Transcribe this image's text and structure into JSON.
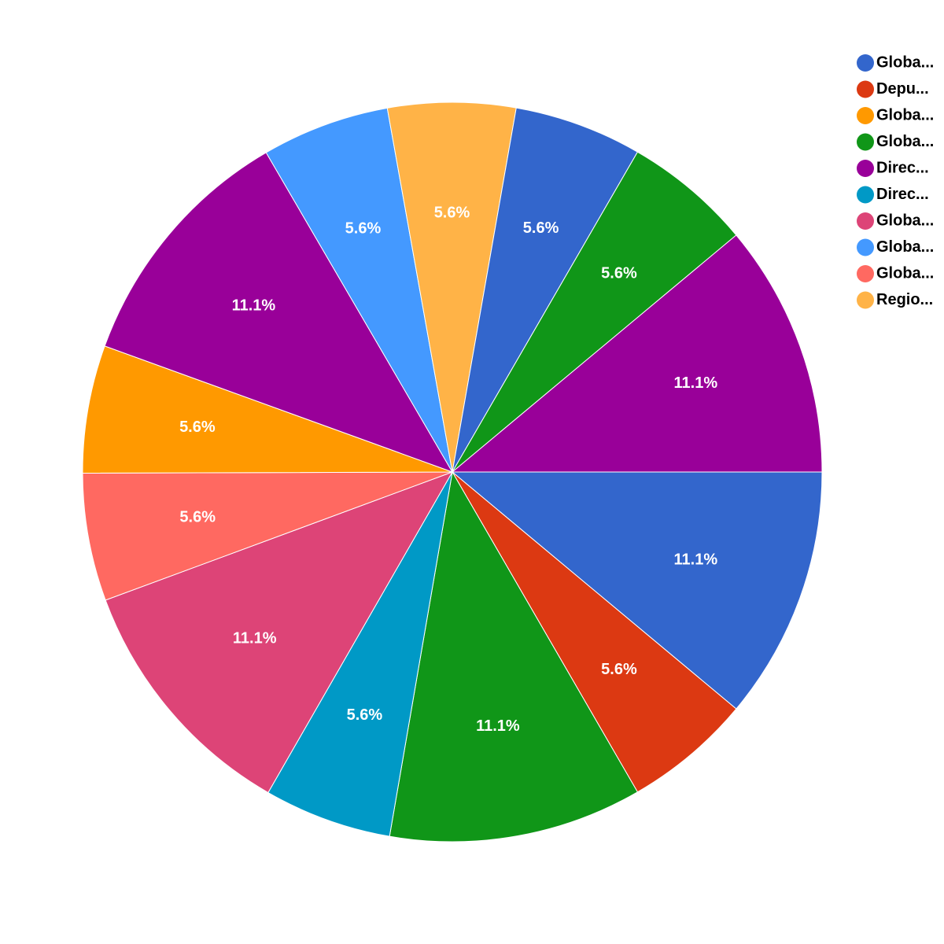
{
  "chart_data": {
    "type": "pie",
    "values": [
      11.1,
      5.6,
      11.1,
      5.6,
      11.1,
      5.6,
      5.6,
      11.1,
      5.6,
      5.6,
      5.6,
      5.6,
      11.1
    ],
    "value_labels": [
      "11.1%",
      "5.6%",
      "11.1%",
      "5.6%",
      "11.1%",
      "5.6%",
      "5.6%",
      "11.1%",
      "5.6%",
      "5.6%",
      "5.6%",
      "5.6%",
      "11.1%"
    ],
    "colors": [
      "#3366cc",
      "#dc3912",
      "#109618",
      "#0099c6",
      "#dd4477",
      "#ff6961",
      "#ff9900",
      "#990099",
      "#4499ff",
      "#ffb347",
      "#3366cc",
      "#109618",
      "#990099"
    ],
    "legend": [
      {
        "name": "Globa...",
        "color": "#3366cc"
      },
      {
        "name": "Depu...",
        "color": "#dc3912"
      },
      {
        "name": "Globa...",
        "color": "#ff9900"
      },
      {
        "name": "Globa...",
        "color": "#109618"
      },
      {
        "name": "Direc...",
        "color": "#990099"
      },
      {
        "name": "Direc...",
        "color": "#0099c6"
      },
      {
        "name": "Globa...",
        "color": "#dd4477"
      },
      {
        "name": "Globa...",
        "color": "#4499ff"
      },
      {
        "name": "Globa...",
        "color": "#ff6961"
      },
      {
        "name": "Regio...",
        "color": "#ffb347"
      }
    ],
    "legend_position": "top-right"
  }
}
